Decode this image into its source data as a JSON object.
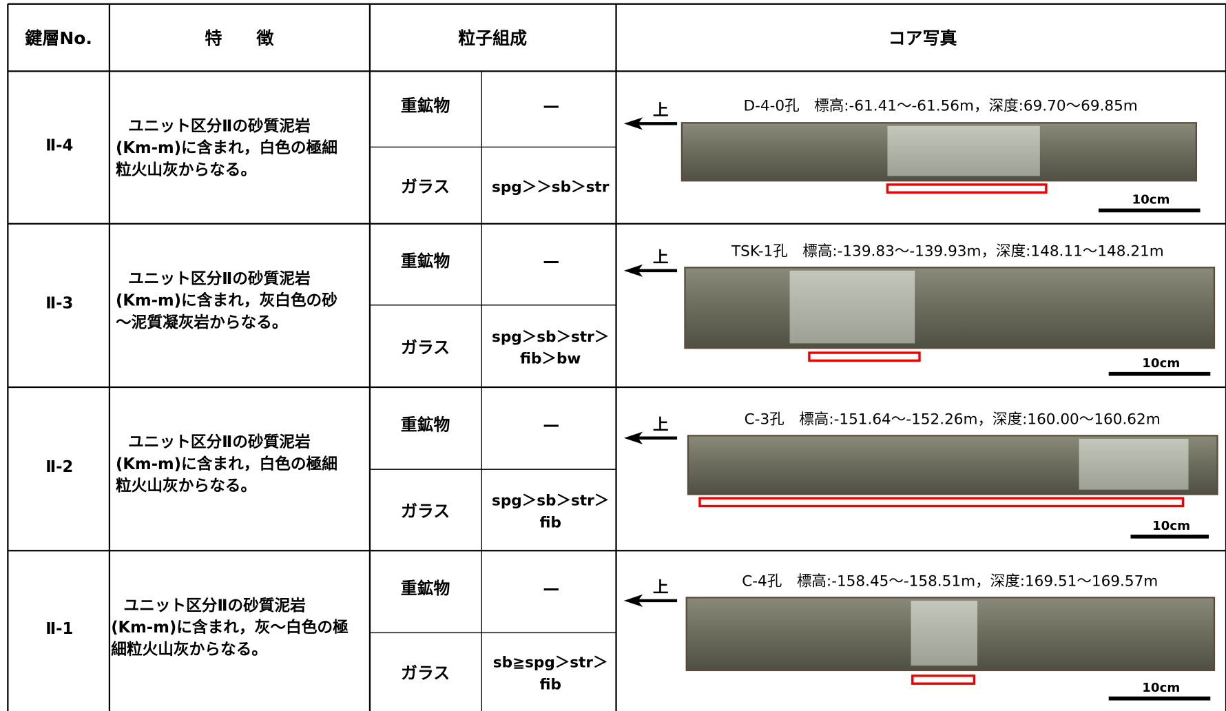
{
  "header": {
    "columns": [
      "鍵層No.",
      "特　　徴",
      "粒子組成",
      "コア写真"
    ]
  },
  "rows": [
    {
      "key": "Ⅱ-4",
      "features": [
        "ユニット区分Ⅱの砂質泥岩",
        "(Km-m)に含まれ，白色の極細",
        "粒火山灰からなる。"
      ],
      "heavy_label": "重鉱物",
      "heavy_value": "—",
      "glass_label": "ガラス",
      "glass_value": [
        "spg＞＞sb＞str"
      ],
      "arrow_label": "上",
      "caption": "D-4-0孔　標高:-61.41～-61.56m，深度:69.70～69.85m",
      "scale_label": "10cm"
    },
    {
      "key": "Ⅱ-3",
      "features": [
        "ユニット区分Ⅱの砂質泥岩",
        "(Km-m)に含まれ，灰白色の砂",
        "～泥質凝灰岩からなる。"
      ],
      "heavy_label": "重鉱物",
      "heavy_value": "—",
      "glass_label": "ガラス",
      "glass_value": [
        "spg＞sb＞str＞",
        "fib＞bw"
      ],
      "arrow_label": "上",
      "caption": "TSK-1孔　標高:-139.83～-139.93m，深度:148.11～148.21m",
      "scale_label": "10cm"
    },
    {
      "key": "Ⅱ-2",
      "features": [
        "ユニット区分Ⅱの砂質泥岩",
        "(Km-m)に含まれ，白色の極細",
        "粒火山灰からなる。"
      ],
      "heavy_label": "重鉱物",
      "heavy_value": "—",
      "glass_label": "ガラス",
      "glass_value": [
        "spg＞sb＞str＞",
        "fib"
      ],
      "arrow_label": "上",
      "caption": "C-3孔　標高:-151.64～-152.26m，深度:160.00～160.62m",
      "scale_label": "10cm"
    },
    {
      "key": "Ⅱ-1",
      "features": [
        "ユニット区分Ⅱの砂質泥岩",
        "(Km-m)に含まれ，灰～白色の極",
        "細粒火山灰からなる。"
      ],
      "heavy_label": "重鉱物",
      "heavy_value": "—",
      "glass_label": "ガラス",
      "glass_value": [
        "sb≧spg＞str＞",
        "fib"
      ],
      "arrow_label": "上",
      "caption": "C-4孔　標高:-158.45～-158.51m，深度:169.51～169.57m",
      "scale_label": "10cm"
    }
  ]
}
